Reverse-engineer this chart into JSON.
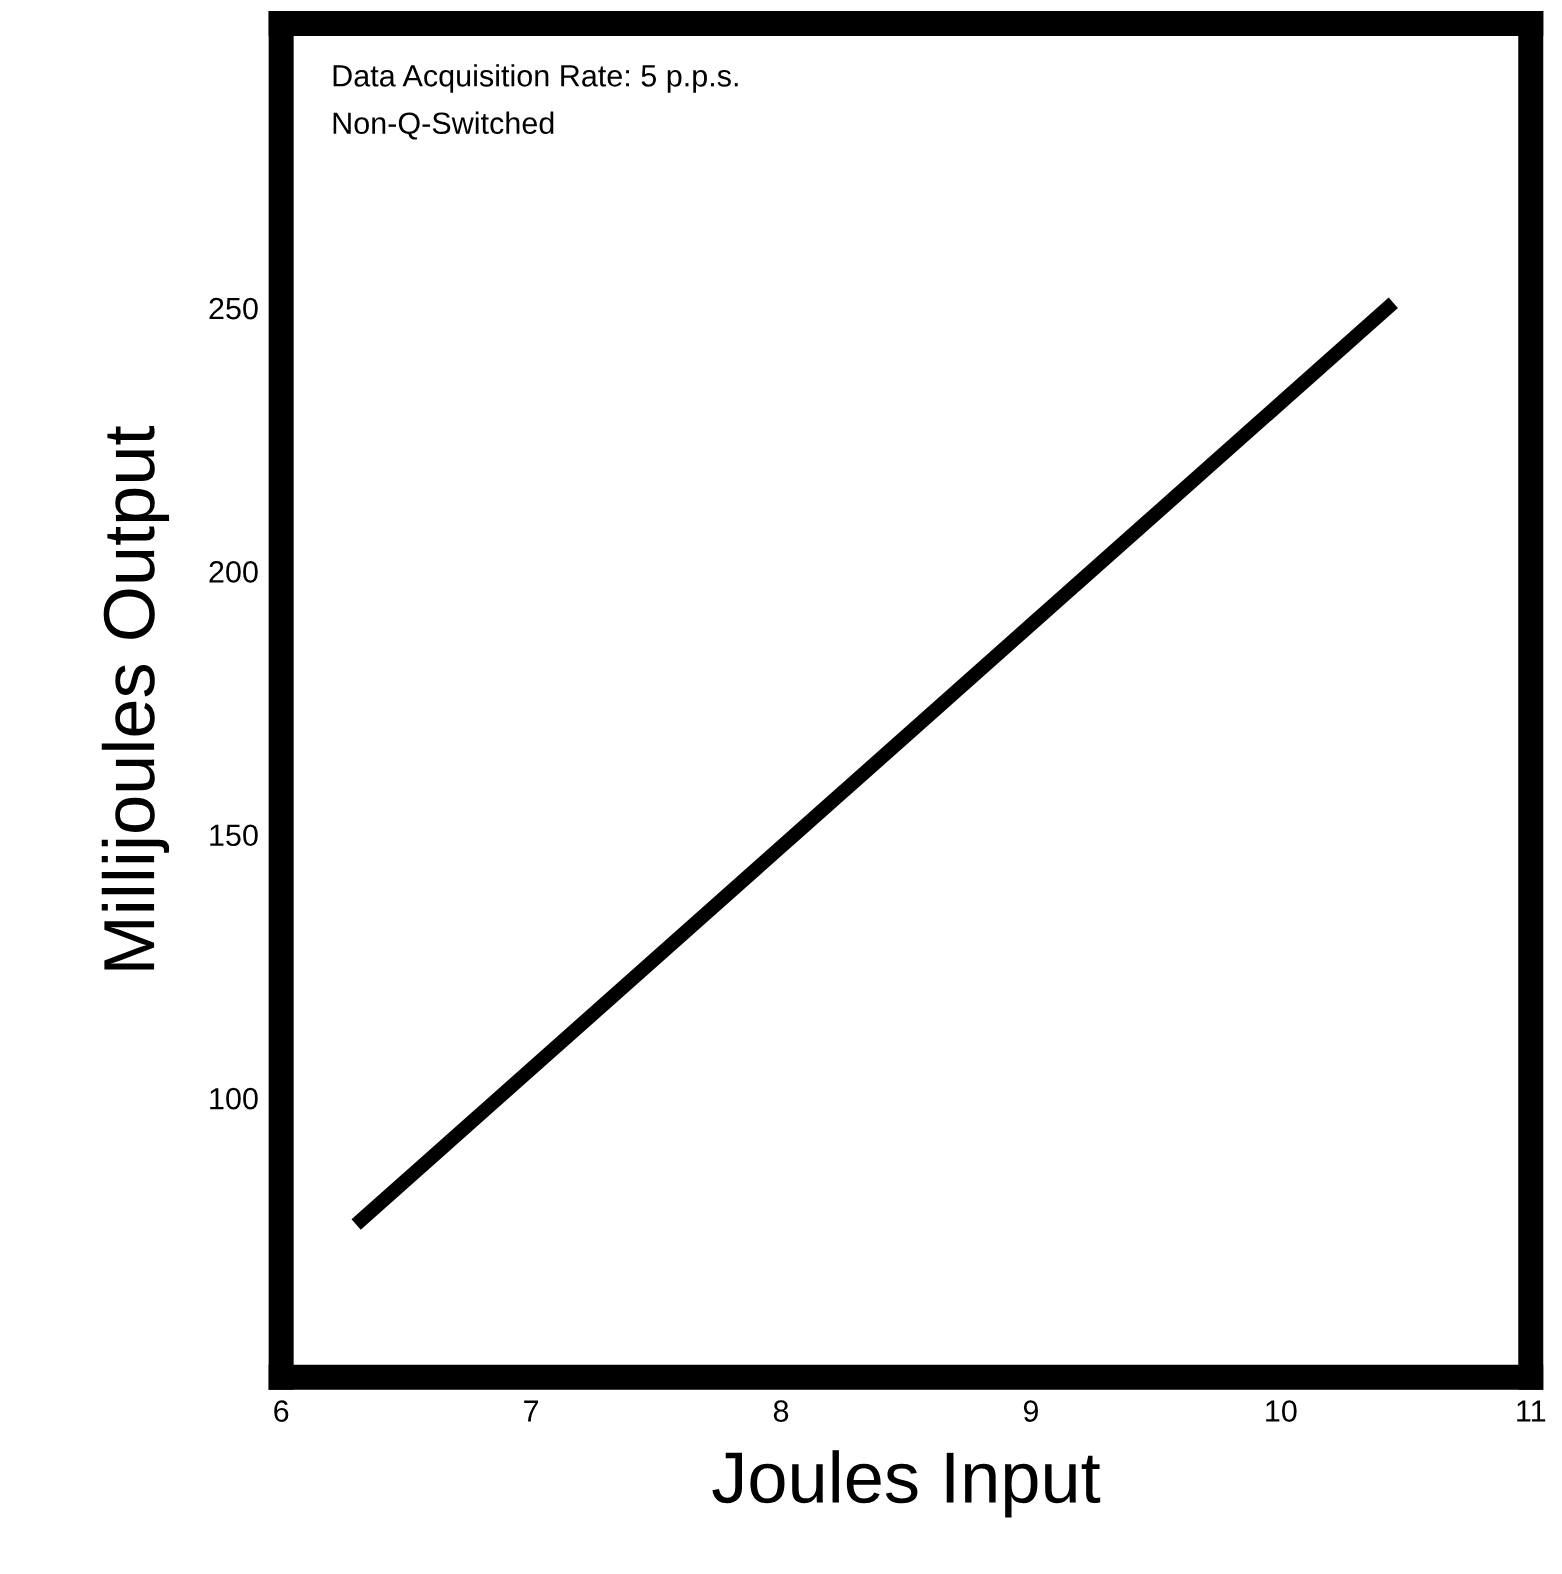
{
  "chart_data": {
    "type": "line",
    "xlabel": "Joules Input",
    "ylabel": "Millijoules Output",
    "annotations": [
      "Data Acquisition Rate: 5 p.p.s.",
      "Non-Q-Switched"
    ],
    "x": [
      6.3,
      10.45
    ],
    "series": [
      {
        "color": "#000000",
        "values": [
          76,
          251
        ]
      }
    ],
    "xlim": [
      6,
      11
    ],
    "ylim": [
      47,
      304
    ],
    "xticks": [
      6,
      7,
      8,
      9,
      10,
      11
    ],
    "yticks": [
      100,
      150,
      200,
      250
    ],
    "grid": false,
    "marker": "none",
    "line_style": "solid"
  }
}
